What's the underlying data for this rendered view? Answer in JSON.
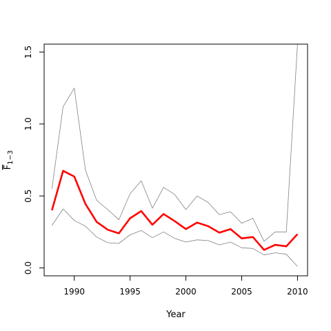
{
  "chart_data": {
    "type": "line",
    "xlabel": "Year",
    "ylabel": "F",
    "ylabel_sub": "1−3",
    "xlim": [
      1987.3,
      2010.9
    ],
    "ylim": [
      -0.055,
      1.555
    ],
    "x_ticks": [
      1990,
      1995,
      2000,
      2005,
      2010
    ],
    "y_ticks": [
      0.0,
      0.5,
      1.0,
      1.5
    ],
    "y_tick_labels": [
      "0.0",
      "0.5",
      "1.0",
      "1.5"
    ],
    "grid": false,
    "x": [
      1988,
      1989,
      1990,
      1991,
      1992,
      1993,
      1994,
      1995,
      1996,
      1997,
      1998,
      1999,
      2000,
      2001,
      2002,
      2003,
      2004,
      2005,
      2006,
      2007,
      2008,
      2009,
      2010
    ],
    "series": [
      {
        "role": "estimate",
        "color": "#ff0000",
        "values": [
          0.4,
          0.675,
          0.635,
          0.445,
          0.32,
          0.265,
          0.24,
          0.345,
          0.395,
          0.3,
          0.375,
          0.325,
          0.27,
          0.315,
          0.29,
          0.245,
          0.27,
          0.205,
          0.215,
          0.125,
          0.16,
          0.15,
          0.235
        ]
      },
      {
        "role": "upper-bound",
        "color": "#808080",
        "values": [
          0.55,
          1.12,
          1.25,
          0.68,
          0.47,
          0.405,
          0.335,
          0.515,
          0.605,
          0.415,
          0.56,
          0.51,
          0.405,
          0.5,
          0.455,
          0.37,
          0.39,
          0.31,
          0.345,
          0.185,
          0.25,
          0.25,
          1.555
        ]
      },
      {
        "role": "lower-bound",
        "color": "#808080",
        "values": [
          0.295,
          0.41,
          0.33,
          0.29,
          0.215,
          0.175,
          0.17,
          0.23,
          0.26,
          0.21,
          0.25,
          0.205,
          0.18,
          0.195,
          0.19,
          0.16,
          0.18,
          0.14,
          0.135,
          0.09,
          0.105,
          0.095,
          0.01
        ]
      }
    ]
  }
}
